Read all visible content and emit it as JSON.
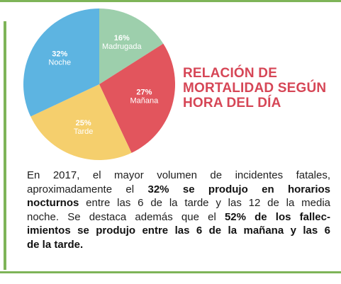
{
  "chart_data": {
    "type": "pie",
    "title": [
      "RELACIÓN DE",
      "MORTALIDAD SEGÚN",
      "HORA DEL DÍA"
    ],
    "slices": [
      {
        "label": "Madrugada",
        "value": 16,
        "value_label": "16%",
        "color": "#9dcfac"
      },
      {
        "label": "Mañana",
        "value": 27,
        "value_label": "27%",
        "color": "#e2555d"
      },
      {
        "label": "Tarde",
        "value": 25,
        "value_label": "25%",
        "color": "#f5cf6d"
      },
      {
        "label": "Noche",
        "value": 32,
        "value_label": "32%",
        "color": "#5db4e1"
      }
    ],
    "start_position": "top",
    "direction": "clockwise"
  },
  "description": {
    "lines": [
      [
        {
          "text": "En 2017, el mayor volumen de incidentes fatales,",
          "bold": false
        }
      ],
      [
        {
          "text": "aproximadamente el ",
          "bold": false
        },
        {
          "text": "32% se produjo en horarios",
          "bold": true
        }
      ],
      [
        {
          "text": "nocturnos",
          "bold": true
        },
        {
          "text": " entre las 6 de la tarde y las 12 de la media",
          "bold": false
        }
      ],
      [
        {
          "text": "noche. Se destaca además que el ",
          "bold": false
        },
        {
          "text": "52% de los fallec-",
          "bold": true
        }
      ],
      [
        {
          "text": "imientos se produjo entre las 6 de la mañana y las 6",
          "bold": true
        }
      ],
      [
        {
          "text": "de la tarde.",
          "bold": true
        }
      ]
    ]
  },
  "colors": {
    "accent_green": "#7eb458",
    "title_red": "#d64656",
    "text": "#1e1e1e"
  }
}
